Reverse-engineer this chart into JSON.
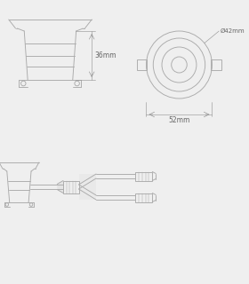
{
  "bg_color": "#efefef",
  "line_color": "#aaaaaa",
  "dim_color": "#999999",
  "text_color": "#666666",
  "dim_36mm": "36mm",
  "dim_42mm": "Ø42mm",
  "dim_52mm": "52mm",
  "fig_width": 2.8,
  "fig_height": 3.2,
  "dpi": 100
}
